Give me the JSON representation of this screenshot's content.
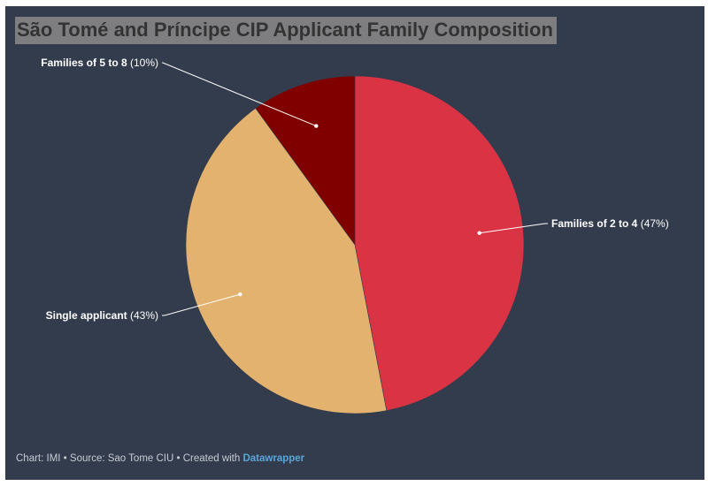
{
  "chart_data": {
    "type": "pie",
    "title": "São Tomé and Príncipe CIP Applicant Family Composition",
    "slices": [
      {
        "name": "Families of 2 to 4",
        "value": 47,
        "value_label": "(47%)",
        "color": "#d93344"
      },
      {
        "name": "Single applicant",
        "value": 43,
        "value_label": "(43%)",
        "color": "#e3b26f"
      },
      {
        "name": "Families of 5 to 8",
        "value": 10,
        "value_label": "(10%)",
        "color": "#800000"
      }
    ],
    "legend": "none"
  },
  "footer": {
    "prefix": "Chart: IMI • Source: Sao Tome CIU • Created with ",
    "link": "Datawrapper"
  },
  "colors": {
    "background": "#333c4d",
    "label": "#ffffff"
  }
}
